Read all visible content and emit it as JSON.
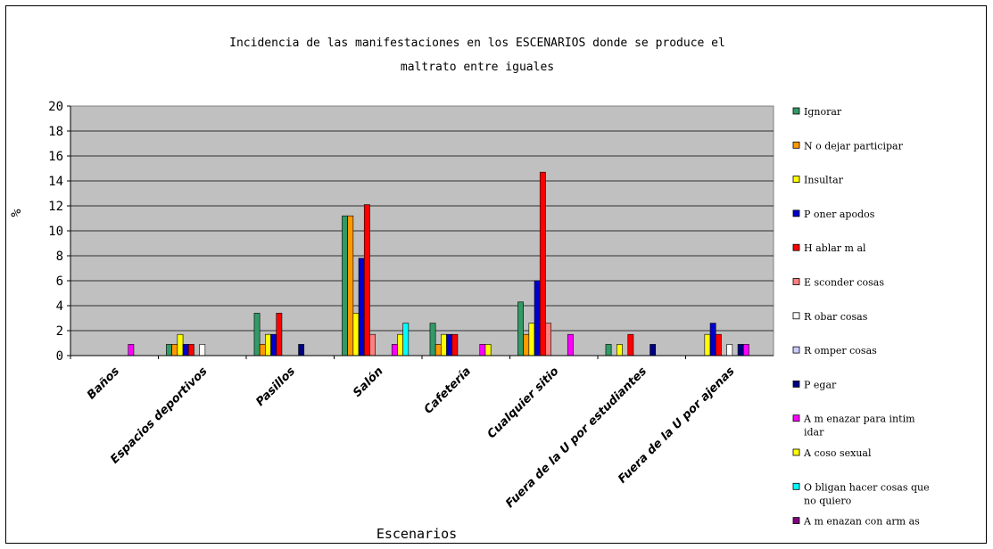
{
  "chart_data": {
    "type": "bar",
    "title_lines": [
      "Incidencia de las manifestaciones en los ESCENARIOS donde se produce el",
      "maltrato entre iguales"
    ],
    "xlabel": "Escenarios",
    "ylabel": "%",
    "ylim": [
      0,
      20
    ],
    "yticks": [
      "0",
      "2",
      "4",
      "6",
      "8",
      "10",
      "12",
      "14",
      "16",
      "18",
      "20"
    ],
    "grid": true,
    "legend_position": "right",
    "categories": [
      "Baños",
      "Espacios deportivos",
      "Pasillos",
      "Salón",
      "Cafetería",
      "Cualquier sitio",
      "Fuera de la U por estudiantes",
      "Fuera de la U por ajenas"
    ],
    "series": [
      {
        "name": "Ignorar",
        "color": "#339966",
        "values": [
          0,
          0.9,
          3.4,
          11.2,
          2.6,
          4.3,
          0.9,
          0
        ]
      },
      {
        "name": "N o dejar participar",
        "color": "#FF9900",
        "values": [
          0,
          0.9,
          0.9,
          11.2,
          0.9,
          1.7,
          0,
          0
        ]
      },
      {
        "name": "Insultar",
        "color": "#FFFF00",
        "values": [
          0,
          1.7,
          1.7,
          3.4,
          1.7,
          2.6,
          0.9,
          1.7
        ]
      },
      {
        "name": "P oner apodos",
        "color": "#0000CC",
        "values": [
          0,
          0.9,
          1.7,
          7.8,
          1.7,
          6.0,
          0,
          2.6
        ]
      },
      {
        "name": "H ablar m al",
        "color": "#FF0000",
        "values": [
          0,
          0.9,
          3.4,
          12.1,
          1.7,
          14.7,
          1.7,
          1.7
        ]
      },
      {
        "name": "E sconder cosas",
        "color": "#FF8080",
        "values": [
          0,
          0,
          0,
          1.7,
          0,
          2.6,
          0,
          0
        ]
      },
      {
        "name": "R obar cosas",
        "color": "#FFFFFF",
        "values": [
          0,
          0.9,
          0,
          0,
          0,
          0,
          0,
          0.9
        ]
      },
      {
        "name": "R omper cosas",
        "color": "#CCCCFF",
        "values": [
          0,
          0,
          0,
          0,
          0,
          0,
          0,
          0
        ]
      },
      {
        "name": "P egar",
        "color": "#000080",
        "values": [
          0,
          0,
          0.9,
          0,
          0,
          0,
          0.9,
          0.9
        ]
      },
      {
        "name": "A m enazar para intim idar",
        "color": "#FF00FF",
        "values": [
          0.9,
          0,
          0,
          0.9,
          0.9,
          1.7,
          0,
          0.9
        ]
      },
      {
        "name": "A coso sexual",
        "color": "#FFFF00",
        "values": [
          0,
          0,
          0,
          1.7,
          0.9,
          0,
          0,
          0
        ]
      },
      {
        "name": "O bligan hacer cosas que no quiero",
        "color": "#00FFFF",
        "values": [
          0,
          0,
          0,
          2.6,
          0,
          0,
          0,
          0
        ]
      },
      {
        "name": "A m enazan con arm as",
        "color": "#800080",
        "values": [
          0,
          0,
          0,
          0,
          0,
          0,
          0,
          0
        ]
      }
    ]
  }
}
